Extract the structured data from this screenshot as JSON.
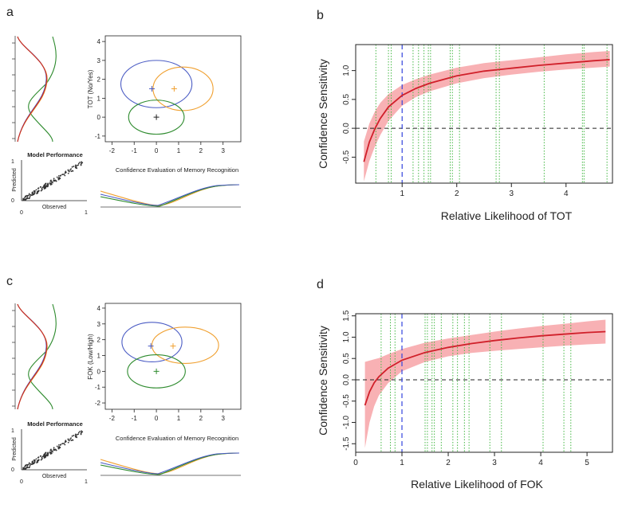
{
  "colors": {
    "blue": "#4b5cc4",
    "orange": "#f0a030",
    "green": "#2e8b2e",
    "red": "#c62a2a",
    "red_curve": "#d0202a",
    "ribbon": "#f7a3a7",
    "green_dotted": "#45b845",
    "blue_dashed": "#3344dd",
    "scatter": "#333333"
  },
  "panels": {
    "a": {
      "letter": "a",
      "ellipse": {
        "type": "scatter",
        "xlabel": "Confidence Evaluation of Memory Recognition",
        "ylabel": "TOT (No/Yes)",
        "xticks": [
          -2,
          -1,
          0,
          1,
          2,
          3
        ],
        "yticks": [
          -1,
          0,
          1,
          2,
          3,
          4
        ],
        "xlim": [
          -2.3,
          3.8
        ],
        "ylim": [
          -1.3,
          4.3
        ],
        "ellipses": [
          {
            "name": "blue",
            "cx": 0.0,
            "cy": 1.75,
            "rx": 1.6,
            "ry": 1.25
          },
          {
            "name": "orange",
            "cx": 1.2,
            "cy": 1.5,
            "rx": 1.35,
            "ry": 1.15
          },
          {
            "name": "green",
            "cx": 0.0,
            "cy": 0.0,
            "rx": 1.25,
            "ry": 0.9
          }
        ],
        "markers": [
          {
            "name": "blue",
            "x": -0.2,
            "y": 1.5
          },
          {
            "name": "orange",
            "x": 0.8,
            "y": 1.5
          },
          {
            "name": "black",
            "x": 0.0,
            "y": 0.0
          }
        ]
      },
      "performance": {
        "title": "Model Performance",
        "xlabel": "Observed",
        "ylabel": "Predicted",
        "ticks": [
          "0",
          "1"
        ]
      }
    },
    "b": {
      "letter": "b",
      "chart_ref": 0
    },
    "c": {
      "letter": "c",
      "ellipse": {
        "type": "scatter",
        "xlabel": "Confidence Evaluation of Memory Recognition",
        "ylabel": "FOK (Low/High)",
        "xticks": [
          -2,
          -1,
          0,
          1,
          2,
          3
        ],
        "yticks": [
          -2,
          -1,
          0,
          1,
          2,
          3,
          4
        ],
        "xlim": [
          -2.3,
          3.8
        ],
        "ylim": [
          -2.4,
          4.3
        ],
        "ellipses": [
          {
            "name": "blue",
            "cx": -0.2,
            "cy": 1.85,
            "rx": 1.35,
            "ry": 1.25
          },
          {
            "name": "orange",
            "cx": 1.3,
            "cy": 1.65,
            "rx": 1.5,
            "ry": 1.15
          },
          {
            "name": "green",
            "cx": 0.0,
            "cy": 0.0,
            "rx": 1.3,
            "ry": 1.05
          }
        ],
        "markers": [
          {
            "name": "blue",
            "x": -0.25,
            "y": 1.6
          },
          {
            "name": "orange",
            "x": 0.75,
            "y": 1.6
          },
          {
            "name": "green",
            "x": 0.0,
            "y": 0.0
          }
        ]
      },
      "performance": {
        "title": "Model Performance",
        "xlabel": "Observed",
        "ylabel": "Predicted",
        "ticks": [
          "0",
          "1"
        ]
      }
    },
    "d": {
      "letter": "d",
      "chart_ref": 1
    }
  },
  "chart_data": [
    {
      "type": "line",
      "title": "",
      "xlabel": "Relative Likelihood of TOT",
      "ylabel": "Confidence Sensitivity",
      "xlim": [
        0.15,
        4.85
      ],
      "ylim": [
        -0.95,
        1.45
      ],
      "xticks": [
        1,
        2,
        3,
        4
      ],
      "yticks": [
        -0.5,
        0.0,
        0.5,
        1.0
      ],
      "ytick_labels": [
        "-0.5",
        "0.0",
        "0.5",
        "1.0"
      ],
      "x": [
        0.3,
        0.4,
        0.5,
        0.6,
        0.75,
        1.0,
        1.25,
        1.5,
        2.0,
        2.5,
        3.0,
        3.5,
        4.0,
        4.5,
        4.8
      ],
      "series": [
        {
          "name": "estimate",
          "values": [
            -0.58,
            -0.24,
            -0.01,
            0.17,
            0.37,
            0.57,
            0.69,
            0.78,
            0.91,
            0.99,
            1.04,
            1.09,
            1.13,
            1.17,
            1.19
          ]
        },
        {
          "name": "lower",
          "values": [
            -0.92,
            -0.57,
            -0.32,
            -0.12,
            0.13,
            0.39,
            0.54,
            0.64,
            0.78,
            0.87,
            0.93,
            0.98,
            1.02,
            1.05,
            1.07
          ]
        },
        {
          "name": "upper",
          "values": [
            -0.23,
            0.08,
            0.29,
            0.44,
            0.59,
            0.75,
            0.85,
            0.93,
            1.05,
            1.13,
            1.18,
            1.23,
            1.28,
            1.32,
            1.34
          ]
        }
      ],
      "reference_lines": {
        "h_zero": 0,
        "v_one": 1
      },
      "rug_x": [
        0.52,
        0.75,
        0.8,
        1.2,
        1.3,
        1.4,
        1.48,
        1.52,
        1.88,
        1.92,
        2.05,
        2.72,
        2.78,
        3.6,
        4.3,
        4.33,
        4.75
      ]
    },
    {
      "type": "line",
      "title": "",
      "xlabel": "Relative Likelihood of FOK",
      "ylabel": "Confidence Sensitivity",
      "xlim": [
        0,
        5.55
      ],
      "ylim": [
        -1.7,
        1.55
      ],
      "xticks": [
        0,
        1,
        2,
        3,
        4,
        5
      ],
      "yticks": [
        -1.5,
        -1.0,
        -0.5,
        0.0,
        0.5,
        1.0,
        1.5
      ],
      "ytick_labels": [
        "-1.5",
        "-1.0",
        "-0.5",
        "0.0",
        "0.5",
        "1.0",
        "1.5"
      ],
      "x": [
        0.2,
        0.3,
        0.4,
        0.5,
        0.7,
        1.0,
        1.5,
        2.0,
        2.5,
        3.0,
        3.5,
        4.0,
        4.5,
        5.0,
        5.4
      ],
      "series": [
        {
          "name": "estimate",
          "values": [
            -0.6,
            -0.28,
            -0.07,
            0.07,
            0.27,
            0.46,
            0.64,
            0.76,
            0.85,
            0.92,
            0.98,
            1.03,
            1.07,
            1.11,
            1.13
          ]
        },
        {
          "name": "lower",
          "values": [
            -1.6,
            -1.0,
            -0.62,
            -0.37,
            -0.08,
            0.2,
            0.42,
            0.55,
            0.63,
            0.68,
            0.72,
            0.76,
            0.8,
            0.83,
            0.85
          ]
        },
        {
          "name": "upper",
          "values": [
            0.42,
            0.45,
            0.48,
            0.51,
            0.6,
            0.72,
            0.87,
            0.97,
            1.05,
            1.13,
            1.2,
            1.26,
            1.31,
            1.37,
            1.41
          ]
        }
      ],
      "reference_lines": {
        "h_zero": 0,
        "v_one": 1
      },
      "rug_x": [
        0.55,
        0.75,
        0.85,
        1.5,
        1.55,
        1.65,
        1.7,
        1.85,
        2.1,
        2.2,
        2.35,
        2.45,
        2.9,
        3.15,
        4.05,
        4.5,
        4.65
      ]
    }
  ]
}
